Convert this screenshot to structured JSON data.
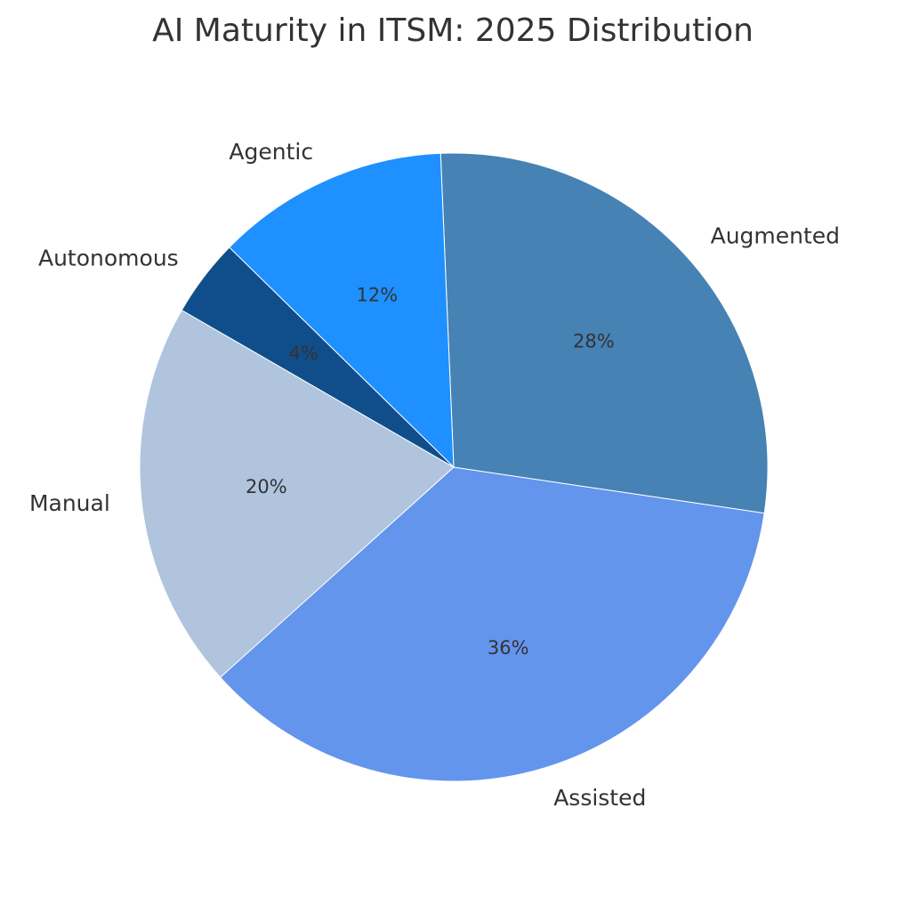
{
  "chart_data": {
    "type": "pie",
    "title": "AI Maturity in ITSM: 2025 Distribution",
    "start_angle_deg": 150,
    "direction": "counterclockwise",
    "slices": [
      {
        "name": "Manual",
        "value": 20,
        "pct_label": "20%",
        "color": "#B0C4DE"
      },
      {
        "name": "Assisted",
        "value": 36,
        "pct_label": "36%",
        "color": "#6495ED"
      },
      {
        "name": "Augmented",
        "value": 28,
        "pct_label": "28%",
        "color": "#4682B4"
      },
      {
        "name": "Agentic",
        "value": 12,
        "pct_label": "12%",
        "color": "#1E90FF"
      },
      {
        "name": "Autonomous",
        "value": 4,
        "pct_label": "4%",
        "color": "#104E8B"
      }
    ]
  }
}
